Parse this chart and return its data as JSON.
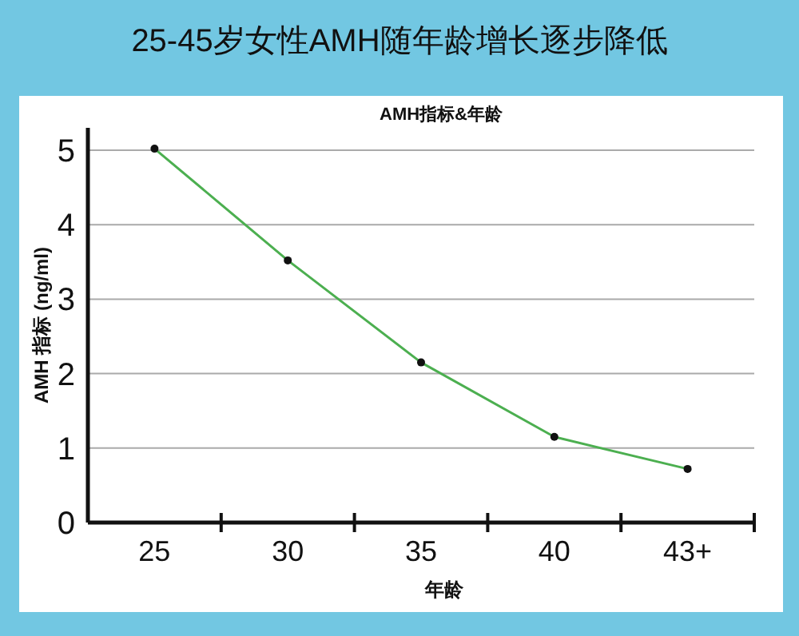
{
  "chart_data": {
    "type": "line",
    "title": "25-45岁女性AMH随年龄增长逐步降低",
    "subtitle": "AMH指标&年龄",
    "xlabel": "年龄",
    "ylabel": "AMH 指标 (ng/ml)",
    "categories": [
      "25",
      "30",
      "35",
      "40",
      "43+"
    ],
    "series": [
      {
        "color": "#4caf50",
        "values": [
          5.02,
          3.52,
          2.15,
          1.15,
          0.72
        ]
      }
    ],
    "ylim": [
      0,
      5.3
    ],
    "yticks": [
      0,
      1,
      2,
      3,
      4,
      5
    ],
    "grid": "y",
    "marker": "circle",
    "line_style": "solid"
  }
}
